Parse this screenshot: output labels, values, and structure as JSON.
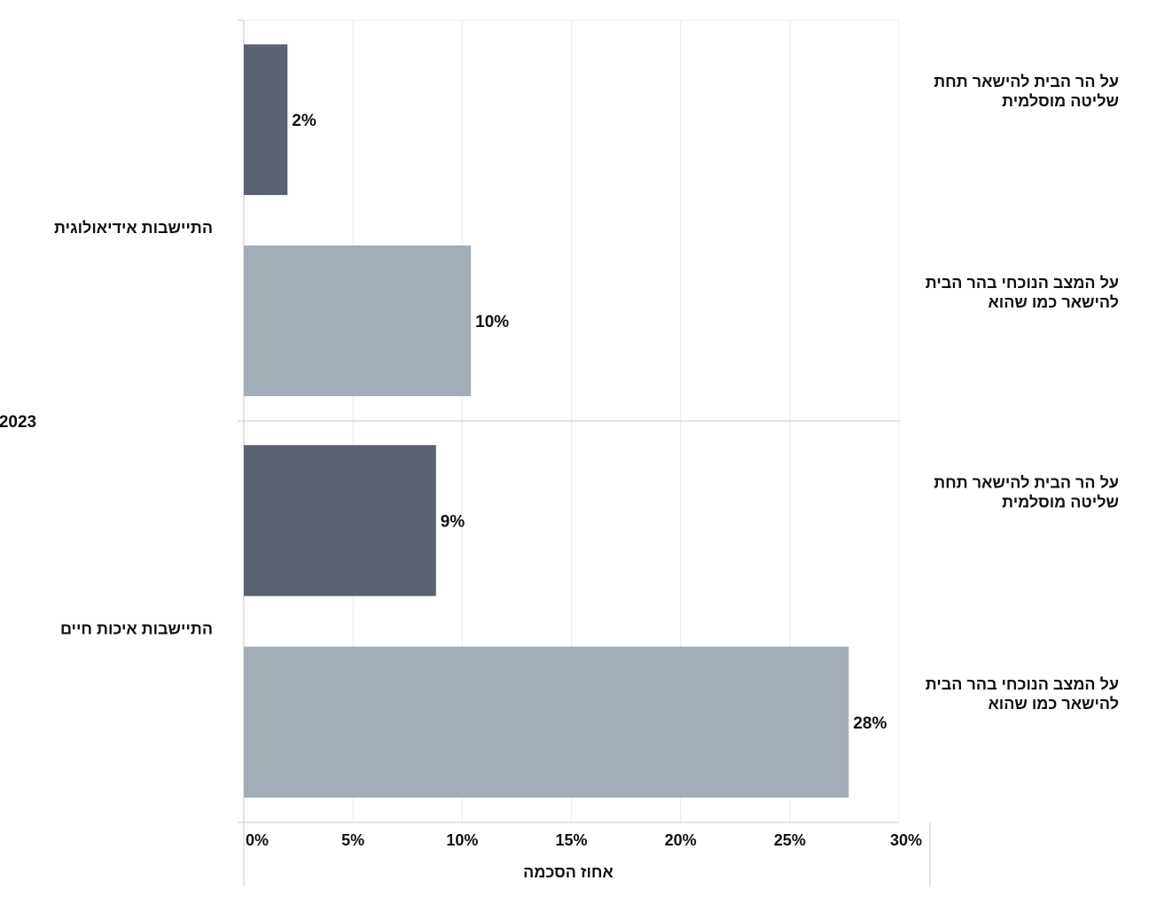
{
  "chart_data": {
    "type": "bar",
    "orientation": "horizontal",
    "year_label": "2023",
    "xlabel": "אחוז הסכמה",
    "xlim": [
      0,
      0.3
    ],
    "x_ticks": [
      0,
      0.05,
      0.1,
      0.15,
      0.2,
      0.25,
      0.3
    ],
    "x_tick_labels": [
      "0%",
      "5%",
      "10%",
      "15%",
      "20%",
      "25%",
      "30%"
    ],
    "grid": true,
    "colors": {
      "dark": "#5a6170",
      "light": "#a3adb8"
    },
    "groups": [
      {
        "label": "התיישבות אידיאולוגית",
        "bars": [
          {
            "label_lines": [
              "על הר הבית להישאר תחת",
              "שליטה מוסלמית"
            ],
            "value": 0.02,
            "value_label": "2%",
            "color": "#5a6170"
          },
          {
            "label_lines": [
              "על המצב הנוכחי בהר הבית",
              "להישאר כמו שהוא"
            ],
            "value": 0.104,
            "value_label": "10%",
            "color": "#a3adb8"
          }
        ]
      },
      {
        "label": "התיישבות איכות חיים",
        "bars": [
          {
            "label_lines": [
              "על הר הבית להישאר תחת",
              "שליטה מוסלמית"
            ],
            "value": 0.088,
            "value_label": "9%",
            "color": "#5a6170"
          },
          {
            "label_lines": [
              "על המצב הנוכחי בהר הבית",
              "להישאר כמו שהוא"
            ],
            "value": 0.277,
            "value_label": "28%",
            "color": "#a3adb8"
          }
        ]
      }
    ]
  }
}
